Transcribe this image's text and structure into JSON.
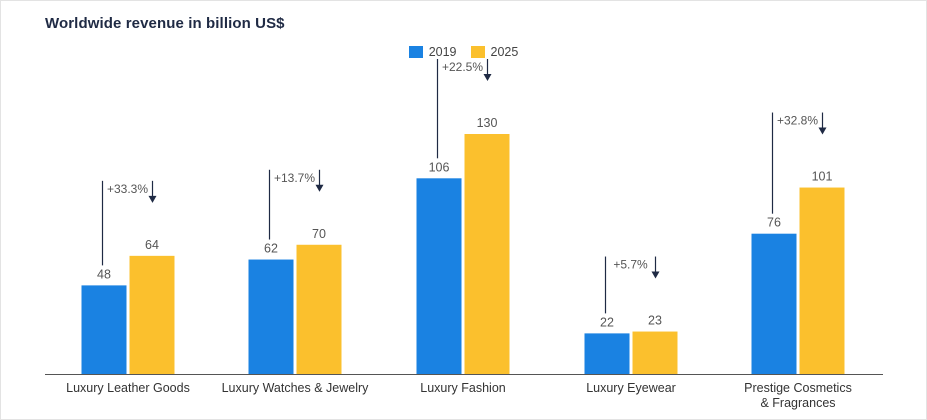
{
  "chart_data": {
    "type": "bar",
    "title": "Worldwide revenue in billion US$",
    "categories": [
      [
        "Luxury Leather Goods"
      ],
      [
        "Luxury Watches & Jewelry"
      ],
      [
        "Luxury Fashion"
      ],
      [
        "Luxury Eyewear"
      ],
      [
        "Prestige Cosmetics",
        "& Fragrances"
      ]
    ],
    "series": [
      {
        "name": "2019",
        "values": [
          48,
          62,
          106,
          22,
          76
        ],
        "color": "#1a82e2"
      },
      {
        "name": "2025",
        "values": [
          64,
          70,
          130,
          23,
          101
        ],
        "color": "#fbc02d"
      }
    ],
    "growth_labels": [
      "+33.3%",
      "+13.7%",
      "+22.5%",
      "+5.7%",
      "+32.8%"
    ],
    "annotation_color": "#1f2a44",
    "xlabel": "",
    "ylabel": "",
    "ylim": [
      0,
      155
    ],
    "grid": false,
    "legend_position": "top-center"
  }
}
